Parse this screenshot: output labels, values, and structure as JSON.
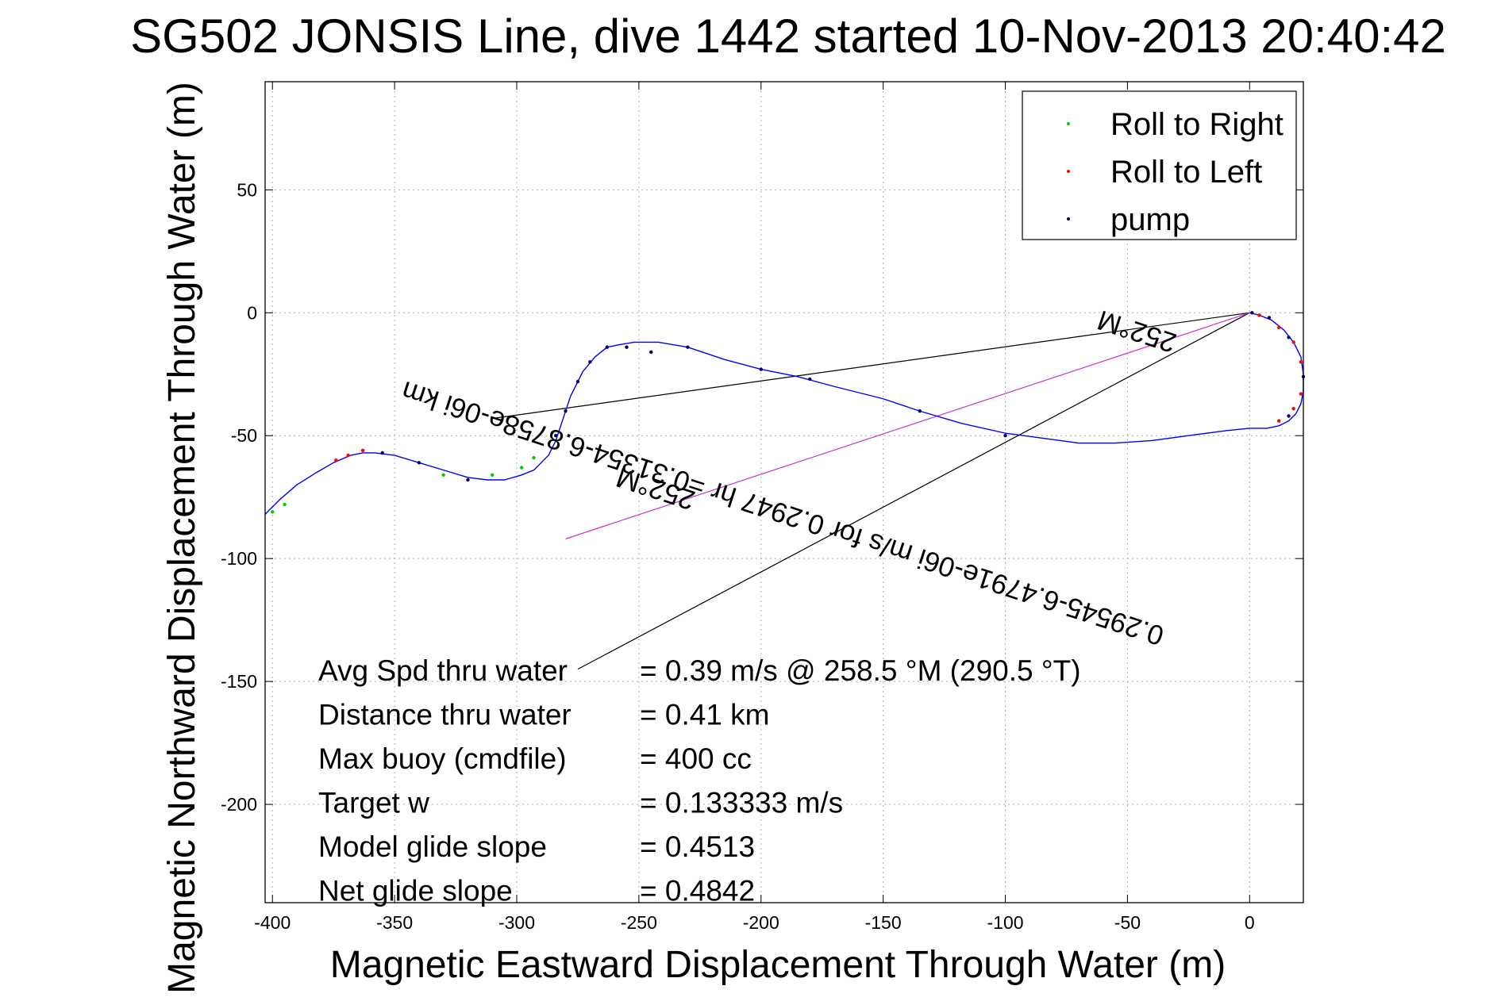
{
  "chart_data": {
    "type": "line",
    "title": "SG502 JONSIS Line, dive 1442 started 10-Nov-2013 20:40:42",
    "xlabel": "Magnetic Eastward Displacement Through Water (m)",
    "ylabel": "Magnetic Northward Displacement Through Water (m)",
    "xlim": [
      -403,
      22
    ],
    "ylim": [
      -240,
      94
    ],
    "grid": true,
    "xticks": [
      -400,
      -350,
      -300,
      -250,
      -200,
      -150,
      -100,
      -50,
      0
    ],
    "yticks": [
      50,
      0,
      -50,
      -100,
      -150,
      -200
    ],
    "legend": {
      "placement": "top-right",
      "entries": [
        {
          "label": "Roll to Right",
          "color": "#00cc00"
        },
        {
          "label": "Roll to Left",
          "color": "#ff0000"
        },
        {
          "label": "pump",
          "color": "#000066"
        }
      ]
    },
    "track": {
      "name": "displacement through water",
      "color": "#0000ff",
      "x": [
        0,
        4,
        9,
        14,
        18,
        21,
        22,
        22,
        21,
        19,
        16,
        12,
        7,
        0,
        -10,
        -25,
        -40,
        -55,
        -70,
        -85,
        -100,
        -118,
        -135,
        -150,
        -170,
        -185,
        -200,
        -215,
        -230,
        -242,
        -252,
        -258,
        -263,
        -268,
        -273,
        -278,
        -281,
        -284,
        -287,
        -290,
        -293,
        -298,
        -305,
        -312,
        -320,
        -330,
        -340,
        -350,
        -358,
        -363,
        -368,
        -375,
        -382,
        -390,
        -397,
        -403
      ],
      "y": [
        0,
        -1,
        -3,
        -7,
        -12,
        -18,
        -25,
        -32,
        -37,
        -41,
        -44,
        -46,
        -47,
        -47,
        -48,
        -50,
        -52,
        -53,
        -53,
        -51,
        -49,
        -45,
        -40,
        -35,
        -30,
        -26,
        -23,
        -19,
        -14,
        -12,
        -12,
        -13,
        -14,
        -18,
        -24,
        -34,
        -43,
        -52,
        -58,
        -61,
        -64,
        -66,
        -68,
        -68,
        -67,
        -64,
        -61,
        -58,
        -57,
        -57,
        -58,
        -61,
        -65,
        -70,
        -76,
        -82
      ]
    },
    "right_roll_points": [
      {
        "x": -293,
        "y": -59
      },
      {
        "x": -298,
        "y": -63
      },
      {
        "x": -310,
        "y": -66
      },
      {
        "x": -330,
        "y": -66
      },
      {
        "x": -395,
        "y": -78
      },
      {
        "x": -400,
        "y": -81
      }
    ],
    "left_roll_points": [
      {
        "x": 4,
        "y": -1
      },
      {
        "x": 12,
        "y": -6
      },
      {
        "x": 18,
        "y": -12
      },
      {
        "x": 21,
        "y": -20
      },
      {
        "x": 21,
        "y": -33
      },
      {
        "x": 18,
        "y": -39
      },
      {
        "x": 12,
        "y": -44
      },
      {
        "x": -363,
        "y": -56
      },
      {
        "x": -369,
        "y": -58
      },
      {
        "x": -374,
        "y": -60
      }
    ],
    "pump_points": [
      {
        "x": 1,
        "y": 0
      },
      {
        "x": 8,
        "y": -2
      },
      {
        "x": 16,
        "y": -10
      },
      {
        "x": 22,
        "y": -26
      },
      {
        "x": 16,
        "y": -42
      },
      {
        "x": -100,
        "y": -50
      },
      {
        "x": -135,
        "y": -40
      },
      {
        "x": -180,
        "y": -27
      },
      {
        "x": -200,
        "y": -23
      },
      {
        "x": -230,
        "y": -14
      },
      {
        "x": -245,
        "y": -16
      },
      {
        "x": -255,
        "y": -14
      },
      {
        "x": -263,
        "y": -14
      },
      {
        "x": -270,
        "y": -20
      },
      {
        "x": -275,
        "y": -28
      },
      {
        "x": -280,
        "y": -40
      },
      {
        "x": -284,
        "y": -50
      },
      {
        "x": -320,
        "y": -68
      },
      {
        "x": -340,
        "y": -61
      },
      {
        "x": -355,
        "y": -57
      }
    ],
    "reference_lines": [
      {
        "color": "#000000",
        "x": [
          0,
          -310
        ],
        "y": [
          0,
          -43
        ]
      },
      {
        "color": "#000000",
        "x": [
          0,
          -275
        ],
        "y": [
          0,
          -145
        ]
      },
      {
        "color": "#cc33cc",
        "x": [
          0,
          -280
        ],
        "y": [
          0,
          -92
        ]
      }
    ],
    "rotated_annotations": [
      {
        "text": "252°M",
        "x": -45,
        "y": -4,
        "angle": 198
      },
      {
        "text": "0.29545-6.4791e-06i m/s for 0.2947 hr =0.31354-6.8758e-06i km",
        "x": -190,
        "y": -78,
        "angle": 198
      },
      {
        "text": "252°M",
        "x": -242,
        "y": -68,
        "angle": 198
      }
    ],
    "stats": [
      {
        "label": "Avg Spd thru water",
        "value": "=  0.39 m/s @ 258.5 °M (290.5 °T)"
      },
      {
        "label": "Distance thru water",
        "value": "=  0.41 km"
      },
      {
        "label": "Max buoy (cmdfile)",
        "value": "= 400 cc"
      },
      {
        "label": "Target w",
        "value": "= 0.133333 m/s"
      },
      {
        "label": "Model glide slope",
        "value": "= 0.4513"
      },
      {
        "label": "Net glide slope",
        "value": "= 0.4842"
      }
    ]
  }
}
